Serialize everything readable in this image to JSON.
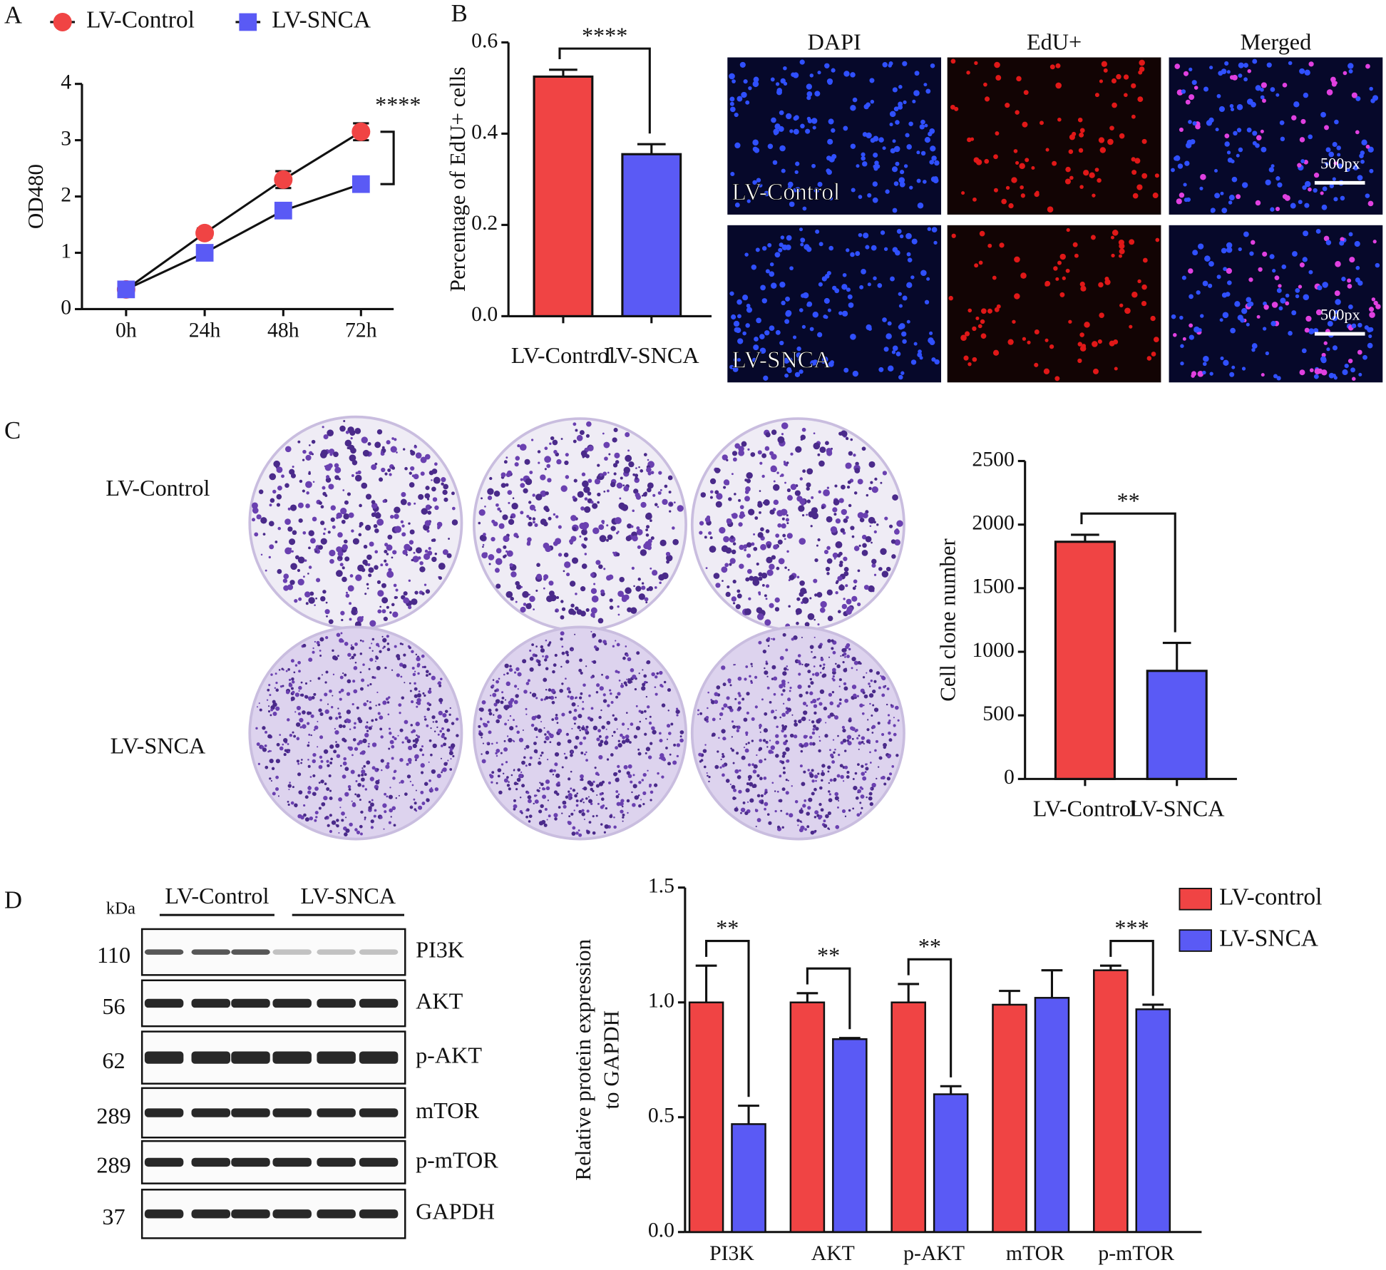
{
  "chart_data": [
    {
      "type": "line",
      "panel": "A",
      "ylabel": "OD480",
      "categories": [
        "0h",
        "24h",
        "48h",
        "72h"
      ],
      "series": [
        {
          "name": "LV-Control",
          "color": "#f04444",
          "marker": "circle",
          "values": [
            0.35,
            1.35,
            2.3,
            3.15
          ],
          "errors": [
            0.05,
            0.08,
            0.15,
            0.15
          ]
        },
        {
          "name": "LV-SNCA",
          "color": "#5a5af5",
          "marker": "square",
          "values": [
            0.35,
            1.0,
            1.75,
            2.22
          ],
          "errors": [
            0.04,
            0.05,
            0.05,
            0.05
          ]
        }
      ],
      "ylim": [
        0,
        4
      ],
      "yticks": [
        0,
        1,
        2,
        3,
        4
      ],
      "significance": "****"
    },
    {
      "type": "bar",
      "panel": "B",
      "ylabel": "Percentage of EdU+ cells",
      "categories": [
        "LV-Control",
        "LV-SNCA"
      ],
      "values": [
        0.525,
        0.355
      ],
      "errors": [
        0.015,
        0.022
      ],
      "colors": [
        "#f04444",
        "#5a5af5"
      ],
      "ylim": [
        0,
        0.6
      ],
      "yticks": [
        {
          "value": 0,
          "label": "0.0"
        },
        0.2,
        0.4,
        0.6
      ],
      "significance": "****"
    },
    {
      "type": "bar",
      "panel": "C",
      "ylabel": "Cell clone number",
      "categories": [
        "LV-Control",
        "LV-SNCA"
      ],
      "values": [
        1865,
        850
      ],
      "errors": [
        55,
        220
      ],
      "colors": [
        "#f04444",
        "#5a5af5"
      ],
      "ylim": [
        0,
        2500
      ],
      "yticks": [
        0,
        500,
        1000,
        1500,
        2000,
        2500
      ],
      "significance": "**"
    },
    {
      "type": "grouped-bar",
      "panel": "D",
      "ylabel": [
        "Relative protein expression",
        "to GAPDH"
      ],
      "categories": [
        "PI3K",
        "AKT",
        "p-AKT",
        "mTOR",
        "p-mTOR"
      ],
      "series": [
        {
          "name": "LV-control",
          "color": "#f04444",
          "values": [
            1.0,
            1.0,
            1.0,
            0.99,
            1.14
          ],
          "errors": [
            0.16,
            0.04,
            0.08,
            0.06,
            0.02
          ]
        },
        {
          "name": "LV-SNCA",
          "color": "#5a5af5",
          "values": [
            0.47,
            0.84,
            0.6,
            1.02,
            0.97
          ],
          "errors": [
            0.08,
            0.005,
            0.035,
            0.12,
            0.02
          ]
        }
      ],
      "ylim": [
        0,
        1.5
      ],
      "yticks": [
        {
          "value": 0,
          "label": "0.0"
        },
        0.5,
        {
          "value": 1,
          "label": "1.0"
        },
        1.5
      ],
      "significance": [
        "**",
        "**",
        "**",
        null,
        "***"
      ],
      "legend": "top-right"
    }
  ],
  "micrographs": {
    "columns": [
      "DAPI",
      "EdU+",
      "Merged"
    ],
    "rows": [
      "LV-Control",
      "LV-SNCA"
    ],
    "scale_bar": "500px"
  },
  "colony_plates": {
    "rows": [
      "LV-Control",
      "LV-SNCA"
    ]
  },
  "western_blot": {
    "unit": "kDa",
    "groups": [
      "LV-Control",
      "LV-SNCA"
    ],
    "bands": [
      {
        "name": "PI3K",
        "kda": 110
      },
      {
        "name": "AKT",
        "kda": 56
      },
      {
        "name": "p-AKT",
        "kda": 62
      },
      {
        "name": "mTOR",
        "kda": 289
      },
      {
        "name": "p-mTOR",
        "kda": 289
      },
      {
        "name": "GAPDH",
        "kda": 37
      }
    ]
  }
}
